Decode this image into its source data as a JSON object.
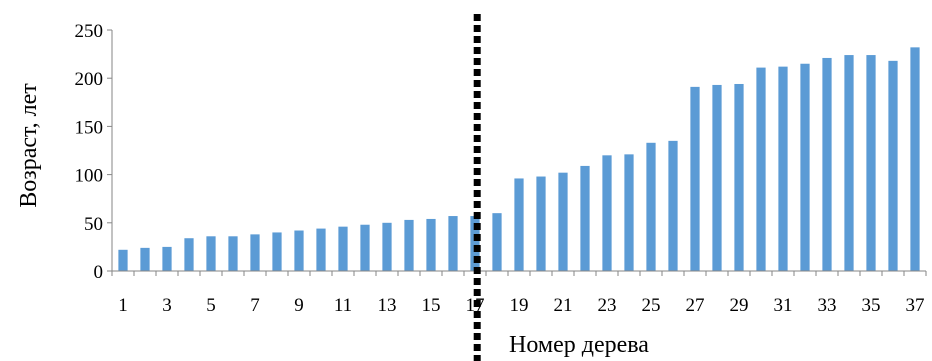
{
  "chart_data": {
    "type": "bar",
    "xlabel": "Номер дерева",
    "ylabel": "Возраст, лет",
    "ylim": [
      0,
      250
    ],
    "yticks": [
      0,
      50,
      100,
      150,
      200,
      250
    ],
    "categories": [
      "1",
      "2",
      "3",
      "4",
      "5",
      "6",
      "7",
      "8",
      "9",
      "10",
      "11",
      "12",
      "13",
      "14",
      "15",
      "16",
      "17",
      "18",
      "19",
      "20",
      "21",
      "22",
      "23",
      "24",
      "25",
      "26",
      "27",
      "28",
      "29",
      "30",
      "31",
      "32",
      "33",
      "34",
      "35",
      "36",
      "37"
    ],
    "xtick_labels": [
      "1",
      "3",
      "5",
      "7",
      "9",
      "11",
      "13",
      "15",
      "17",
      "19",
      "21",
      "23",
      "25",
      "27",
      "29",
      "31",
      "33",
      "35",
      "37"
    ],
    "values": [
      22,
      24,
      25,
      34,
      36,
      36,
      38,
      40,
      42,
      44,
      46,
      48,
      50,
      53,
      54,
      57,
      57,
      60,
      96,
      98,
      102,
      109,
      120,
      121,
      133,
      135,
      191,
      193,
      194,
      211,
      212,
      215,
      221,
      224,
      224,
      218,
      232
    ],
    "bar_color": "#5b9bd5",
    "divider_after_category": "17",
    "divider_style": "dotted",
    "divider_color": "#000000",
    "grid": false,
    "legend": "none"
  }
}
